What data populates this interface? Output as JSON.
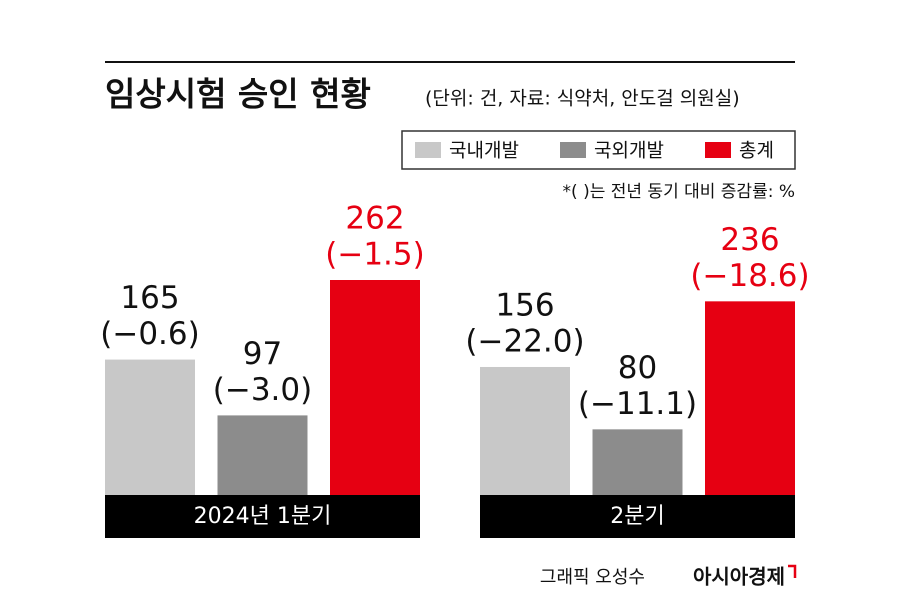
{
  "chart_data": {
    "type": "bar",
    "title": "임상시험 승인 현황",
    "subtitle": "(단위: 건, 자료: 식약처, 안도걸 의원실)",
    "note": "*( )는 전년 동기 대비 증감률: %",
    "credit": "그래픽 오성수",
    "brand": "아시아경제",
    "categories": [
      "2024년 1분기",
      "2분기"
    ],
    "series": [
      {
        "name": "국내개발",
        "color": "#c8c8c8",
        "values": [
          165,
          156
        ],
        "changes": [
          -0.6,
          -22.0
        ],
        "change_labels": [
          "(−0.6)",
          "(−22.0)"
        ]
      },
      {
        "name": "국외개발",
        "color": "#8c8c8c",
        "values": [
          97,
          80
        ],
        "changes": [
          -3.0,
          -11.1
        ],
        "change_labels": [
          "(−3.0)",
          "(−11.1)"
        ]
      },
      {
        "name": "총계",
        "color": "#e60012",
        "values": [
          262,
          236
        ],
        "changes": [
          -1.5,
          -18.6
        ],
        "change_labels": [
          "(−1.5)",
          "(−18.6)"
        ]
      }
    ]
  }
}
